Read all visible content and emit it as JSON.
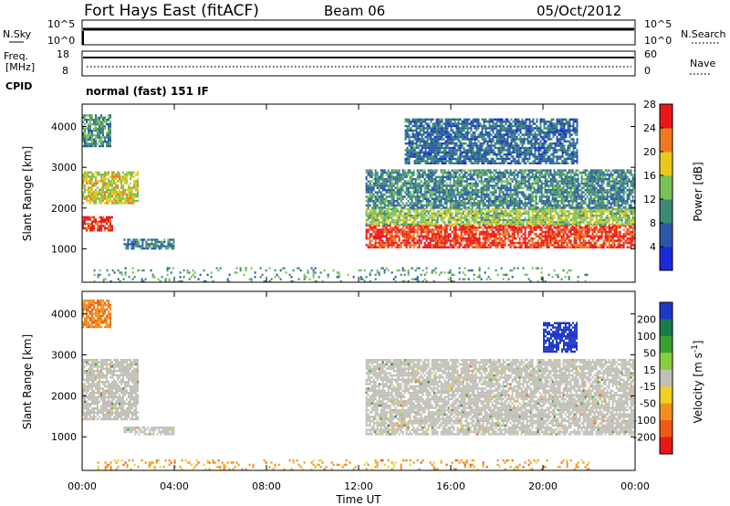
{
  "header": {
    "title": "Fort Hays East (fitACF)",
    "beam": "Beam 06",
    "date": "05/Oct/2012"
  },
  "status_panels": {
    "nsky_label": "N.Sky",
    "nsearch_label": "N.Search",
    "scale_max": "10^5",
    "scale_min": "10^0",
    "freq_label_1": "Freq.",
    "freq_label_2": "[MHz]",
    "freq_ticks": [
      "18",
      "8"
    ],
    "nave_label": "Nave",
    "nave_ticks": [
      "60",
      "0"
    ],
    "cpid_label": "CPID",
    "cpid_text": "normal (fast) 151 IF"
  },
  "chart_data": [
    {
      "type": "heatmap",
      "title": "",
      "xlabel": "Time UT",
      "ylabel": "Slant Range [km]",
      "x_ticks": [
        "00:00",
        "04:00",
        "08:00",
        "12:00",
        "16:00",
        "20:00",
        "00:00"
      ],
      "y_ticks": [
        "1000",
        "2000",
        "3000",
        "4000"
      ],
      "xlim_hours": [
        0,
        24
      ],
      "ylim_km": [
        180,
        4550
      ],
      "colorbar": {
        "label": "Power [dB]",
        "ticks": [
          "4",
          "8",
          "12",
          "16",
          "20",
          "24",
          "28"
        ],
        "range": [
          0,
          30
        ],
        "colors": [
          "#1a2ad8",
          "#2a58a8",
          "#3c8a74",
          "#78c058",
          "#e8c81c",
          "#f07820",
          "#e81818"
        ]
      },
      "regions": [
        {
          "t": [
            0.0,
            1.3
          ],
          "r": [
            1450,
            1800
          ],
          "v": 27
        },
        {
          "t": [
            0.0,
            2.4
          ],
          "r": [
            2100,
            2900
          ],
          "v": 18
        },
        {
          "t": [
            0.0,
            1.2
          ],
          "r": [
            3500,
            4300
          ],
          "v": 11
        },
        {
          "t": [
            1.8,
            4.0
          ],
          "r": [
            1000,
            1250
          ],
          "v": 9
        },
        {
          "t": [
            12.3,
            24.0
          ],
          "r": [
            1050,
            1600
          ],
          "v": 27
        },
        {
          "t": [
            12.3,
            24.0
          ],
          "r": [
            1600,
            2000
          ],
          "v": 16
        },
        {
          "t": [
            12.3,
            24.0
          ],
          "r": [
            2000,
            2950
          ],
          "v": 10
        },
        {
          "t": [
            14.0,
            21.5
          ],
          "r": [
            3100,
            4200
          ],
          "v": 8
        },
        {
          "t": [
            0.5,
            22.0
          ],
          "r": [
            200,
            550
          ],
          "v": 12
        }
      ]
    },
    {
      "type": "heatmap",
      "title": "",
      "xlabel": "Time UT",
      "ylabel": "Slant Range [km]",
      "x_ticks": [
        "00:00",
        "04:00",
        "08:00",
        "12:00",
        "16:00",
        "20:00",
        "00:00"
      ],
      "y_ticks": [
        "1000",
        "2000",
        "3000",
        "4000"
      ],
      "xlim_hours": [
        0,
        24
      ],
      "ylim_km": [
        180,
        4550
      ],
      "colorbar": {
        "label": "Velocity [m s^-1]",
        "ticks": [
          "200",
          "100",
          "50",
          "15",
          "-15",
          "-50",
          "-100",
          "-200"
        ],
        "colors": [
          "#2038c8",
          "#1a7a48",
          "#3ca030",
          "#88cc40",
          "#c0c0b8",
          "#f0d020",
          "#f09020",
          "#f05818",
          "#e81818"
        ]
      },
      "regions": [
        {
          "t": [
            0.0,
            2.4
          ],
          "r": [
            1450,
            2900
          ],
          "v": 0
        },
        {
          "t": [
            0.0,
            1.2
          ],
          "r": [
            3700,
            4350
          ],
          "v": -60
        },
        {
          "t": [
            1.8,
            4.0
          ],
          "r": [
            1050,
            1250
          ],
          "v": 0
        },
        {
          "t": [
            12.3,
            24.0
          ],
          "r": [
            1050,
            2000
          ],
          "v": 0
        },
        {
          "t": [
            12.3,
            24.0
          ],
          "r": [
            2000,
            2900
          ],
          "v": 0
        },
        {
          "t": [
            20.0,
            21.5
          ],
          "r": [
            3100,
            3800
          ],
          "v": 200
        },
        {
          "t": [
            0.5,
            22.0
          ],
          "r": [
            200,
            450
          ],
          "v": -50
        }
      ]
    }
  ]
}
